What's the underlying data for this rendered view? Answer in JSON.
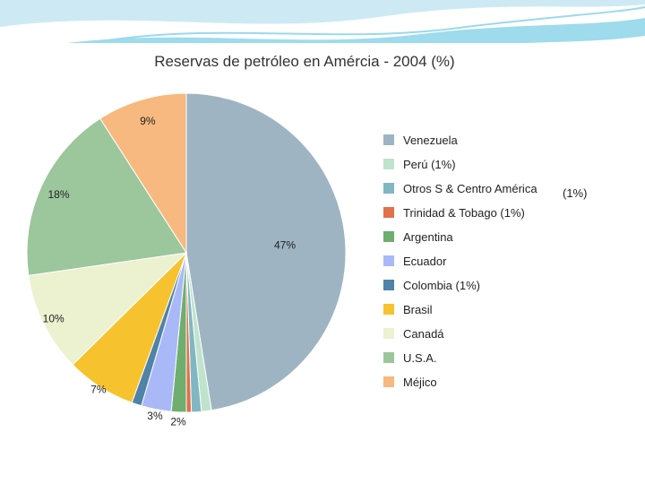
{
  "chart_data": {
    "type": "pie",
    "title": "Reservas de petróleo en Amércia - 2004 (%)",
    "categories": [
      "Venezuela",
      "Perú",
      "Otros S & Centro América",
      "Trinidad & Tobago",
      "Argentina",
      "Ecuador",
      "Colombia",
      "Brasil",
      "Canadá",
      "U.S.A.",
      "Méjico"
    ],
    "values": [
      47,
      1,
      1,
      0.5,
      1.5,
      3,
      1,
      7,
      10,
      18,
      9
    ],
    "slice_labels": [
      "47%",
      "",
      "",
      "",
      "2%",
      "3%",
      "",
      "7%",
      "10%",
      "18%",
      "9%"
    ],
    "colors": [
      "#9fb4c3",
      "#bfe3cc",
      "#80b7c2",
      "#e0714a",
      "#6fae6f",
      "#a9b9f7",
      "#4f83a8",
      "#f6c22e",
      "#ecf1cf",
      "#9cc69c",
      "#f7b97f"
    ],
    "legend": {
      "position": "right",
      "entries": [
        "Venezuela",
        "Perú  (1%)",
        "Otros S & Centro América",
        "Trinidad & Tobago (1%)",
        "Argentina",
        "Ecuador",
        "Colombia   (1%)",
        "Brasil",
        "Canadá",
        "U.S.A.",
        "Méjico"
      ],
      "note": "(1%)"
    }
  }
}
